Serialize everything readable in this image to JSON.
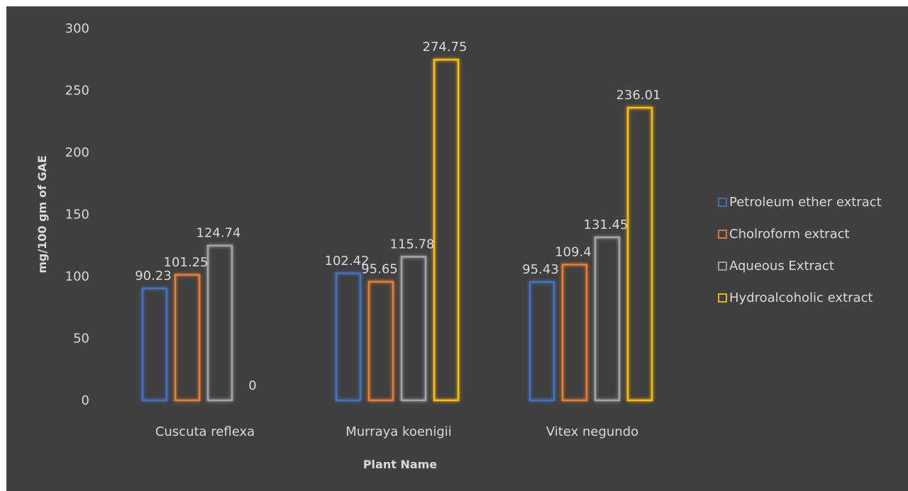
{
  "chart_data": {
    "type": "bar",
    "title": "",
    "xlabel": "Plant Name",
    "ylabel": "mg/100 gm of GAE",
    "categories": [
      "Cuscuta reflexa",
      "Murraya koenigii",
      "Vitex negundo"
    ],
    "ylim": [
      0,
      300
    ],
    "yticks": [
      0,
      50,
      100,
      150,
      200,
      250,
      300
    ],
    "grid": false,
    "legend_position": "right",
    "series": [
      {
        "name": "Petroleum ether extract",
        "color": "#4472c4",
        "values": [
          90.23,
          102.42,
          95.43
        ],
        "labels": [
          "90.23",
          "102.42",
          "95.43"
        ]
      },
      {
        "name": "Cholroform extract",
        "color": "#ed7d31",
        "values": [
          101.25,
          95.65,
          109.4
        ],
        "labels": [
          "101.25",
          "95.65",
          "109.4"
        ]
      },
      {
        "name": "Aqueous Extract",
        "color": "#a5a5a5",
        "values": [
          124.74,
          115.78,
          131.45
        ],
        "labels": [
          "124.74",
          "115.78",
          "131.45"
        ]
      },
      {
        "name": "Hydroalcoholic extract",
        "color": "#ffc000",
        "values": [
          0,
          274.75,
          236.01
        ],
        "labels": [
          "0",
          "274.75",
          "236.01"
        ]
      }
    ]
  }
}
